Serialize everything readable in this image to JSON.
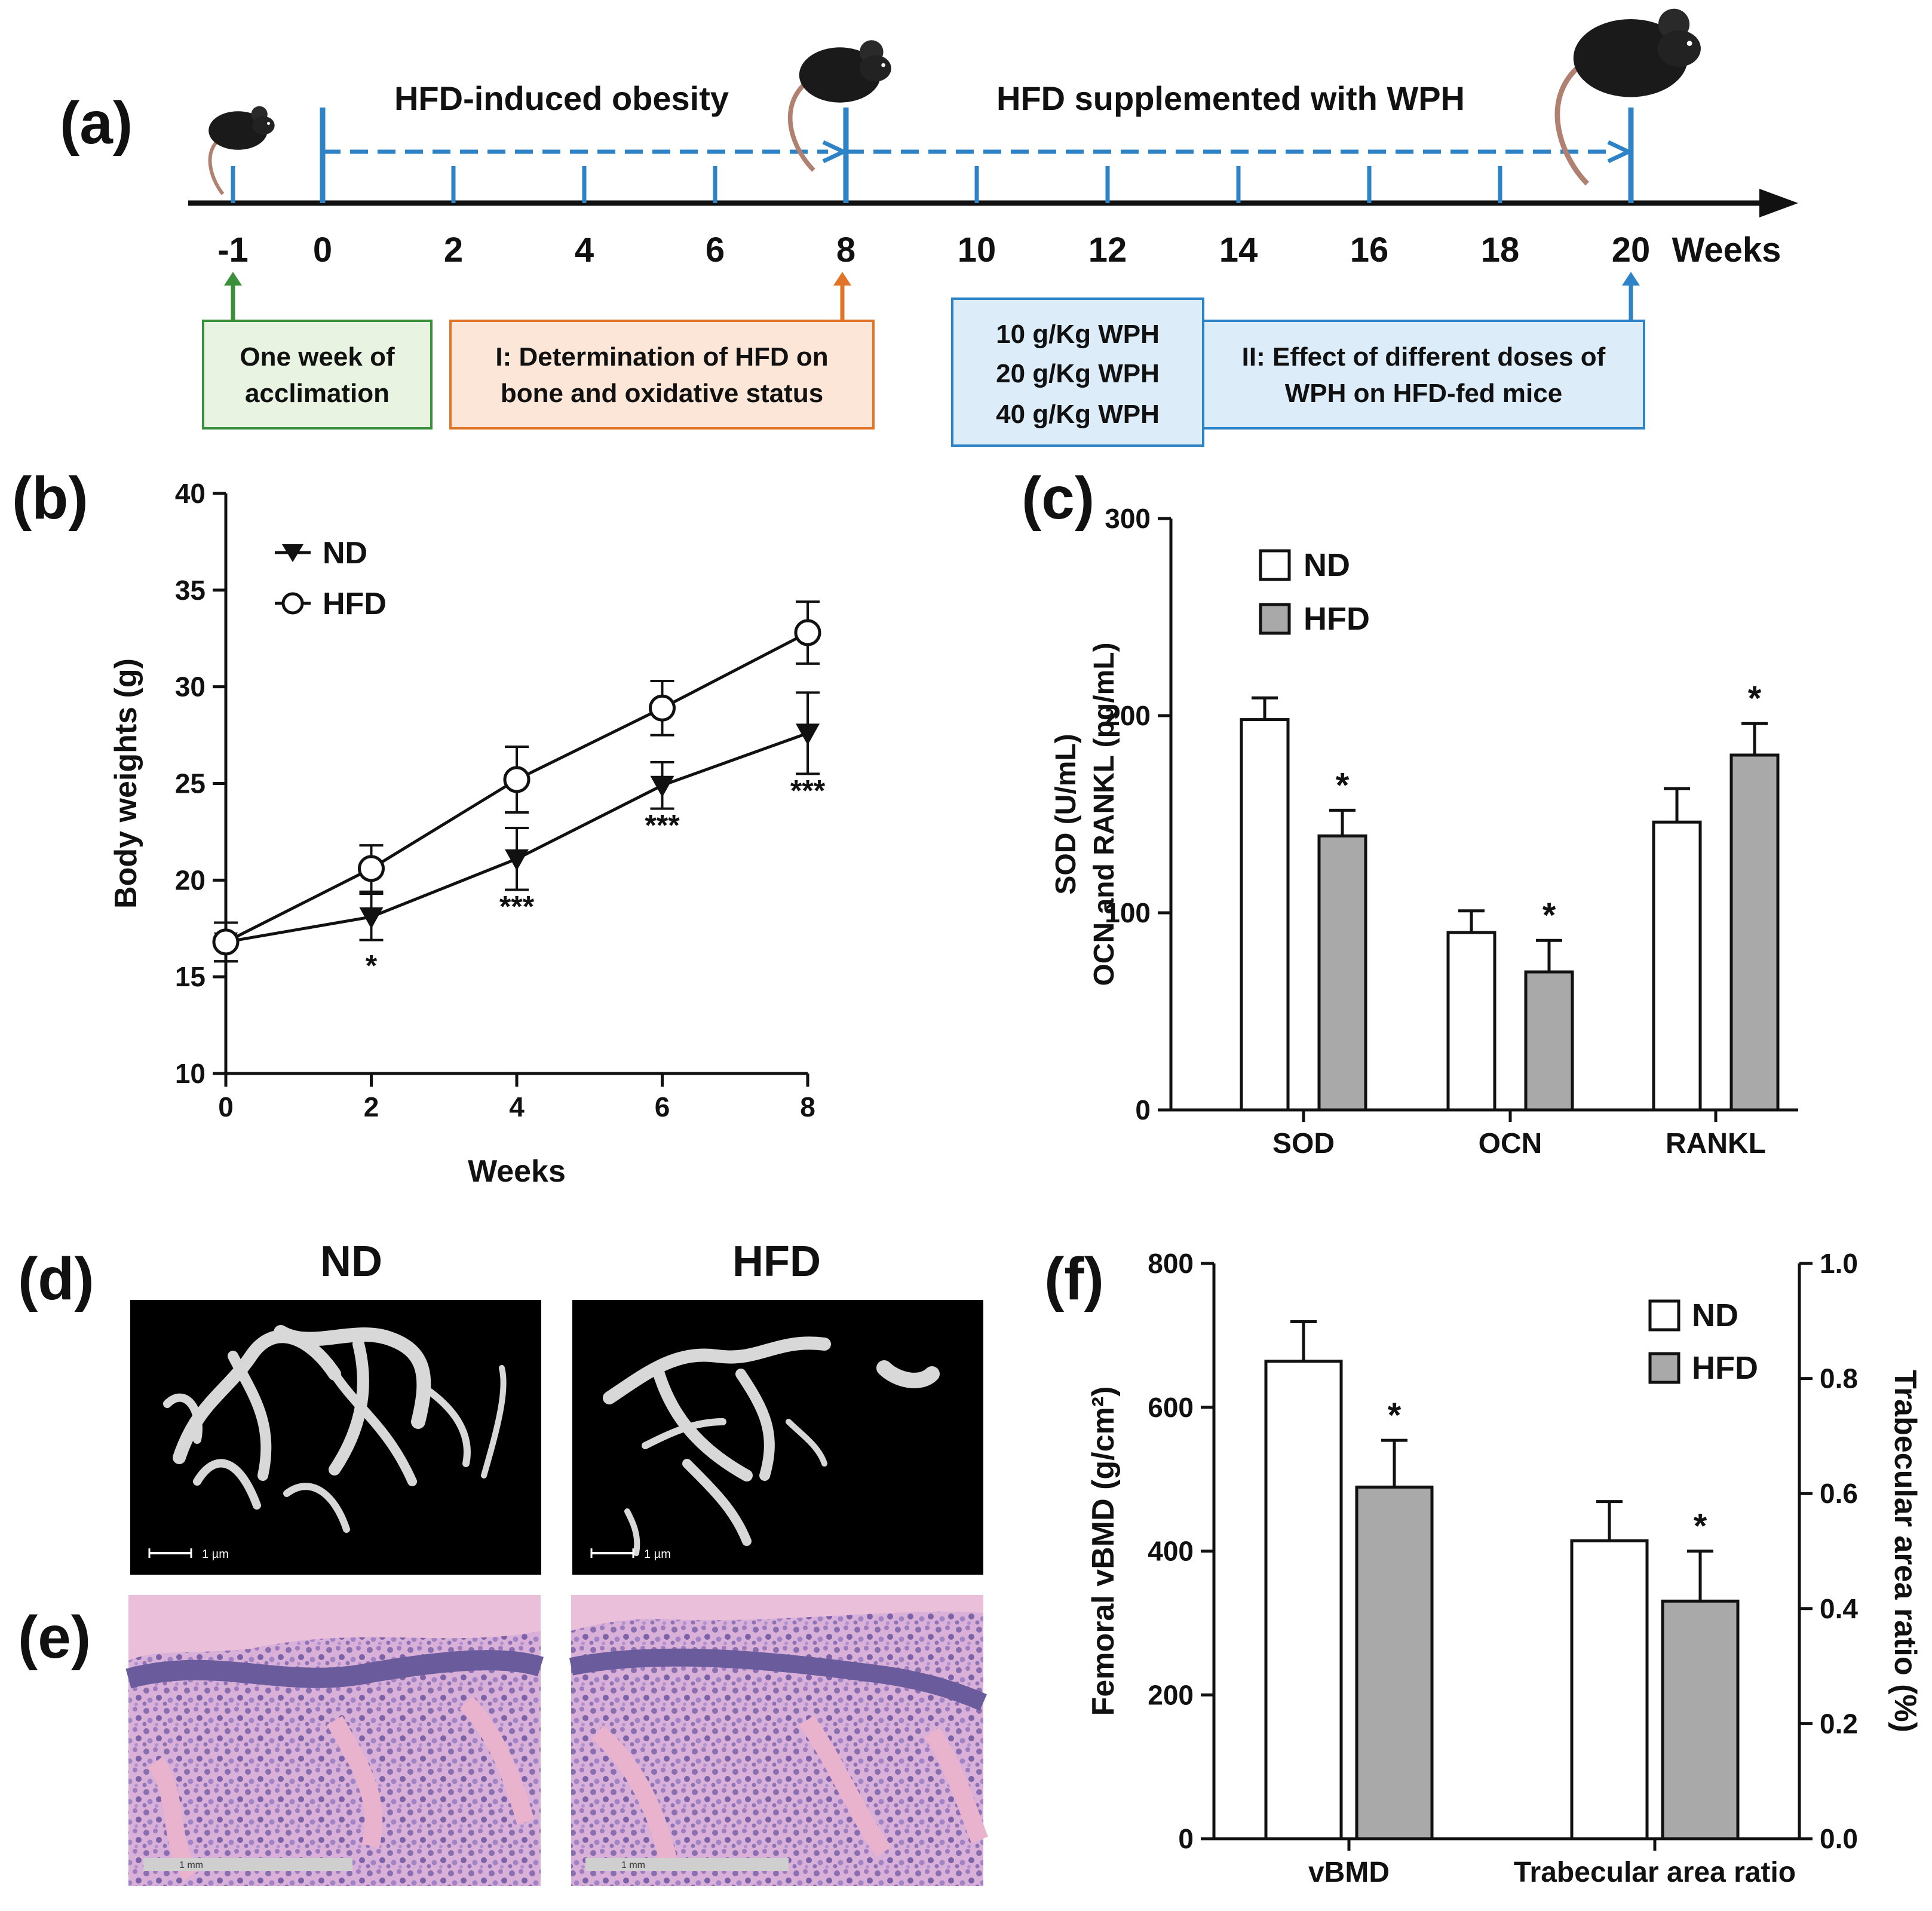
{
  "panels": {
    "a": "(a)",
    "b": "(b)",
    "c": "(c)",
    "d": "(d)",
    "e": "(e)",
    "f": "(f)"
  },
  "colors": {
    "blue": "#2d83c5",
    "green": "#3a8f3a",
    "orange": "#e07428",
    "box_green_bg": "#e8f4e1",
    "box_orange_bg": "#fce6d8",
    "box_blue_bg": "#dcecf8",
    "bar_grey": "#a9a9a9",
    "dark": "#111111"
  },
  "timeline": {
    "phase1_label": "HFD-induced obesity",
    "phase2_label": "HFD supplemented with WPH",
    "ticks": [
      "-1",
      "0",
      "2",
      "4",
      "6",
      "8",
      "10",
      "12",
      "14",
      "16",
      "18",
      "20"
    ],
    "weeks_label": "Weeks",
    "box_acclimation": [
      "One week of",
      "acclimation"
    ],
    "box_stage1": [
      "I: Determination of HFD on",
      "bone and oxidative status"
    ],
    "box_doses": [
      "10 g/Kg WPH",
      "20 g/Kg WPH",
      "40 g/Kg WPH"
    ],
    "box_stage2": [
      "II: Effect of different doses of",
      "WPH on HFD-fed mice"
    ],
    "icons": [
      "mouse-icon-small",
      "mouse-icon-medium",
      "mouse-icon-large"
    ]
  },
  "chart_data": [
    {
      "id": "b",
      "type": "line",
      "xlabel": "Weeks",
      "ylabel": "Body weights (g)",
      "x": [
        0,
        2,
        4,
        6,
        8
      ],
      "xticks": [
        "0",
        "2",
        "4",
        "6",
        "8"
      ],
      "ylim": [
        10,
        40
      ],
      "yticks": [
        "10",
        "15",
        "20",
        "25",
        "30",
        "35",
        "40"
      ],
      "series": [
        {
          "name": "ND",
          "marker": "filled-triangle-down",
          "values": [
            16.8,
            18.1,
            21.1,
            24.9,
            27.6
          ],
          "errors": [
            1.0,
            1.2,
            1.6,
            1.2,
            2.1
          ]
        },
        {
          "name": "HFD",
          "marker": "open-circle",
          "values": [
            16.8,
            20.6,
            25.2,
            28.9,
            32.8
          ],
          "errors": [
            1.0,
            1.2,
            1.7,
            1.4,
            1.6
          ]
        }
      ],
      "significance": [
        "",
        "*",
        "***",
        "***",
        "***"
      ]
    },
    {
      "id": "c",
      "type": "bar",
      "ylabel_lines": [
        "SOD (U/mL)",
        "OCN and RANKL (pg/mL)"
      ],
      "categories": [
        "SOD",
        "OCN",
        "RANKL"
      ],
      "ylim": [
        0,
        300
      ],
      "yticks": [
        "0",
        "100",
        "200",
        "300"
      ],
      "series": [
        {
          "name": "ND",
          "values": [
            198,
            90,
            146
          ],
          "errors": [
            11,
            11,
            17
          ]
        },
        {
          "name": "HFD",
          "values": [
            139,
            70,
            180
          ],
          "errors": [
            13,
            16,
            16
          ]
        }
      ],
      "significance": [
        "*",
        "*",
        "*"
      ]
    },
    {
      "id": "f",
      "type": "bar",
      "ylabel_left": "Femoral vBMD (g/cm²)",
      "ylabel_right": "Trabecular area ratio (%)",
      "categories": [
        "vBMD",
        "Trabecular area ratio"
      ],
      "ylim_left": [
        0,
        800
      ],
      "yticks_left": [
        "0",
        "200",
        "400",
        "600",
        "800"
      ],
      "ylim_right": [
        0,
        1.0
      ],
      "yticks_right": [
        "0.0",
        "0.2",
        "0.4",
        "0.6",
        "0.8",
        "1.0"
      ],
      "series": [
        {
          "name": "ND",
          "values": [
            664,
            0.518
          ],
          "errors": [
            55,
            0.068
          ]
        },
        {
          "name": "HFD",
          "values": [
            489,
            0.413
          ],
          "errors": [
            65,
            0.087
          ]
        }
      ],
      "significance": [
        "*",
        "*"
      ]
    }
  ],
  "images": {
    "d_titles": [
      "ND",
      "HFD"
    ],
    "scale_d": "1 µm",
    "scale_e": "1 mm"
  }
}
